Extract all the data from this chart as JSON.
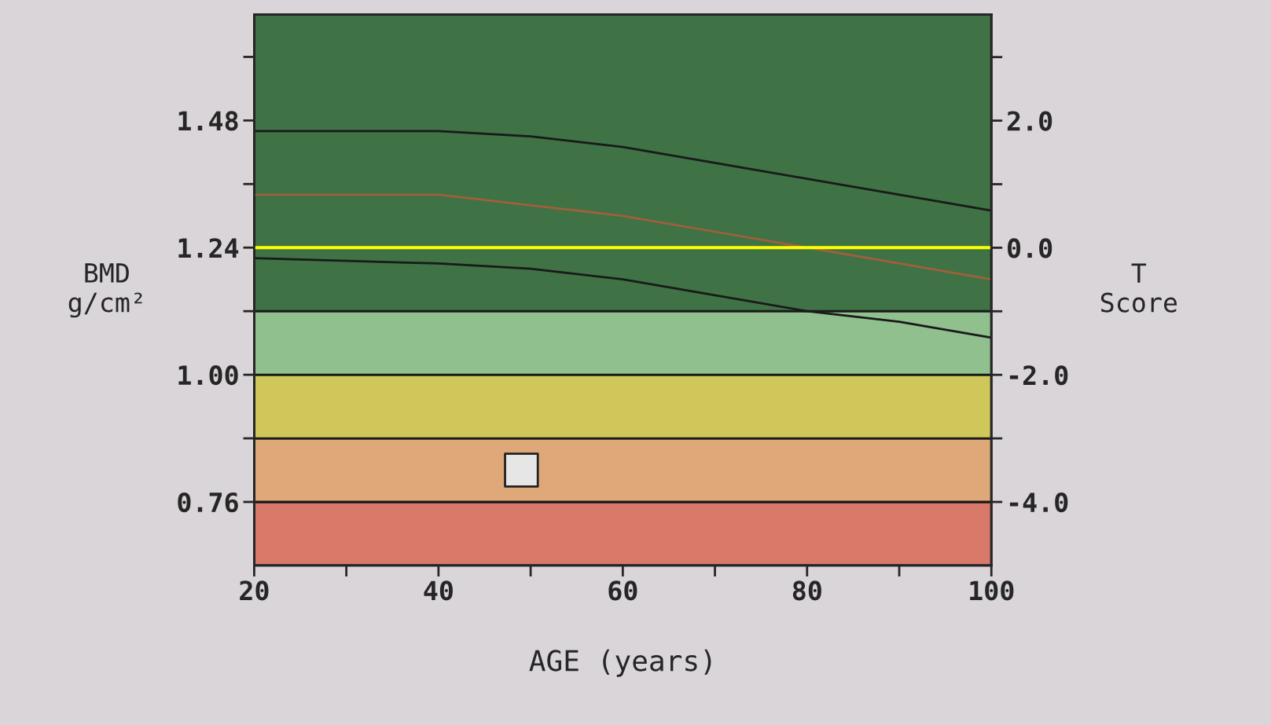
{
  "chart_data": {
    "type": "line",
    "xlabel": "AGE (years)",
    "ylabel": "BMD\ng/cm²",
    "y2label": "T\nScore",
    "xlim": [
      20,
      100
    ],
    "xticks": [
      20,
      {
        "value": 30,
        "label": null
      },
      40,
      {
        "value": 50,
        "label": null
      },
      60,
      {
        "value": 70,
        "label": null
      },
      80,
      {
        "value": 90,
        "label": null
      },
      100
    ],
    "ylim": [
      0.64,
      1.68
    ],
    "yticks": [
      {
        "value": 0.76,
        "label": "0.76"
      },
      {
        "value": 0.88,
        "label": null
      },
      {
        "value": 1.0,
        "label": "1.00"
      },
      {
        "value": 1.12,
        "label": null
      },
      {
        "value": 1.24,
        "label": "1.24"
      },
      {
        "value": 1.36,
        "label": null
      },
      {
        "value": 1.48,
        "label": "1.48"
      },
      {
        "value": 1.6,
        "label": null
      }
    ],
    "y2lim": [
      -5,
      3.67
    ],
    "y2ticks": [
      {
        "value": -4,
        "label": "-4.0"
      },
      {
        "value": -3,
        "label": null
      },
      {
        "value": -2,
        "label": "-2.0"
      },
      {
        "value": -1,
        "label": null
      },
      {
        "value": 0,
        "label": "0.0"
      },
      {
        "value": 1,
        "label": null
      },
      {
        "value": 2,
        "label": "2.0"
      },
      {
        "value": 3,
        "label": null
      }
    ],
    "bands": [
      {
        "axis": "y",
        "from": 0.64,
        "to": 0.76,
        "color": "#d9796a"
      },
      {
        "axis": "y",
        "from": 0.76,
        "to": 0.88,
        "color": "#dea878"
      },
      {
        "axis": "y",
        "from": 0.88,
        "to": 1.0,
        "color": "#cfc75a"
      },
      {
        "axis": "y",
        "from": 1.0,
        "to": 1.12,
        "color": "#8fc08e"
      },
      {
        "axis": "y",
        "from": 1.12,
        "to": 1.68,
        "color": "#3f7245"
      }
    ],
    "ref_lines": [
      {
        "axis": "y",
        "value": 1.24,
        "color": "#ffff00"
      }
    ],
    "series": [
      {
        "color": "#1a1a1a",
        "x": [
          20,
          40,
          50,
          60,
          70,
          80,
          90,
          100
        ],
        "values": [
          1.46,
          1.46,
          1.45,
          1.43,
          1.4,
          1.37,
          1.34,
          1.31
        ]
      },
      {
        "color": "#a0603a",
        "x": [
          20,
          40,
          50,
          60,
          70,
          80,
          90,
          100
        ],
        "values": [
          1.34,
          1.34,
          1.32,
          1.3,
          1.27,
          1.24,
          1.21,
          1.18
        ]
      },
      {
        "color": "#1a1a1a",
        "x": [
          20,
          40,
          50,
          60,
          70,
          80,
          90,
          100
        ],
        "values": [
          1.22,
          1.21,
          1.2,
          1.18,
          1.15,
          1.12,
          1.1,
          1.07
        ]
      },
      {
        "type": "scatter",
        "color": "#e6e6e6",
        "marker": "square",
        "x": [
          49
        ],
        "values": [
          0.82
        ]
      }
    ],
    "grid": false
  }
}
